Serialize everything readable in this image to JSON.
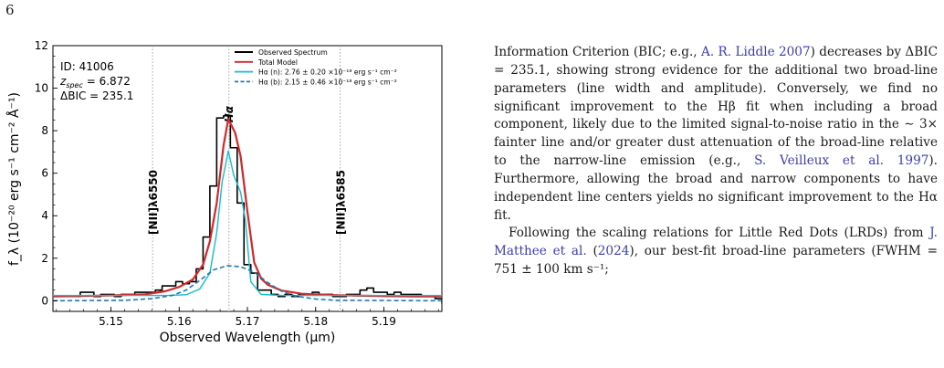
{
  "page": {
    "number": "6"
  },
  "figure": {
    "info_box": {
      "id_line": "ID: 41006",
      "z_label": "z",
      "z_sub": "spec",
      "z_value": " = 6.872",
      "bic_line": "ΔBIC = 235.1"
    },
    "line_labels": [
      {
        "text": "[NII]λ6550",
        "wavelength": 5.1561
      },
      {
        "text": "Hα",
        "wavelength": 5.1673
      },
      {
        "text": "[NII]λ6585",
        "wavelength": 5.1836
      }
    ],
    "legend": [
      {
        "label": "Observed Spectrum",
        "color": "#000000",
        "style": "solid"
      },
      {
        "label": "Total Model",
        "color": "#d62728",
        "style": "solid"
      },
      {
        "label": "Hα (n): 2.76 ± 0.20 ×10⁻¹⁸ erg s⁻¹ cm⁻²",
        "color": "#17becf",
        "style": "solid"
      },
      {
        "label": "Hα (b): 2.15 ± 0.46 ×10⁻¹⁸ erg s⁻¹ cm⁻²",
        "color": "#1f77b4",
        "style": "dashed"
      }
    ]
  },
  "chart_data": {
    "type": "line",
    "xlabel": "Observed Wavelength (μm)",
    "ylabel": "f_λ (10⁻²⁰ erg s⁻¹ cm⁻² Å⁻¹)",
    "xlim": [
      5.1415,
      5.1985
    ],
    "ylim": [
      -0.5,
      12
    ],
    "xticks": [
      "5.15",
      "5.16",
      "5.17",
      "5.18",
      "5.19"
    ],
    "yticks": [
      "0",
      "2",
      "4",
      "6",
      "8",
      "10",
      "12"
    ],
    "grid": false,
    "legend_position": "top-right",
    "series": [
      {
        "name": "Observed Spectrum",
        "kind": "step",
        "x": [
          5.1415,
          5.1425,
          5.1435,
          5.1445,
          5.1455,
          5.1465,
          5.1475,
          5.1485,
          5.1495,
          5.1505,
          5.1515,
          5.1525,
          5.1535,
          5.1545,
          5.1555,
          5.1565,
          5.1575,
          5.1585,
          5.1595,
          5.1605,
          5.1615,
          5.1625,
          5.1635,
          5.1645,
          5.1655,
          5.1665,
          5.1675,
          5.1685,
          5.1695,
          5.1705,
          5.1715,
          5.1725,
          5.1735,
          5.1745,
          5.1755,
          5.1765,
          5.1775,
          5.1785,
          5.1795,
          5.1805,
          5.1815,
          5.1825,
          5.1835,
          5.1845,
          5.1855,
          5.1865,
          5.1875,
          5.1885,
          5.1895,
          5.1905,
          5.1915,
          5.1925,
          5.1935,
          5.1945,
          5.1955,
          5.1965,
          5.1975,
          5.1985
        ],
        "values": [
          0.2,
          0.2,
          0.2,
          0.2,
          0.4,
          0.4,
          0.2,
          0.3,
          0.3,
          0.2,
          0.3,
          0.3,
          0.4,
          0.4,
          0.4,
          0.5,
          0.7,
          0.7,
          0.9,
          0.8,
          0.9,
          1.5,
          3.0,
          5.4,
          8.6,
          8.7,
          7.2,
          4.6,
          1.7,
          1.3,
          0.5,
          0.5,
          0.3,
          0.2,
          0.3,
          0.2,
          0.3,
          0.3,
          0.4,
          0.3,
          0.3,
          0.2,
          0.2,
          0.3,
          0.3,
          0.5,
          0.6,
          0.4,
          0.4,
          0.3,
          0.4,
          0.3,
          0.3,
          0.3,
          0.2,
          0.2,
          0.1,
          -0.1
        ]
      },
      {
        "name": "Total Model",
        "x": [
          5.1415,
          5.145,
          5.15,
          5.155,
          5.158,
          5.16,
          5.162,
          5.1635,
          5.1645,
          5.1655,
          5.1665,
          5.1672,
          5.1682,
          5.169,
          5.17,
          5.171,
          5.172,
          5.173,
          5.175,
          5.178,
          5.182,
          5.186,
          5.19,
          5.195,
          5.1985
        ],
        "values": [
          0.2,
          0.22,
          0.25,
          0.3,
          0.45,
          0.65,
          1.0,
          1.7,
          2.8,
          4.6,
          7.3,
          8.55,
          7.9,
          6.8,
          4.2,
          1.8,
          1.05,
          0.75,
          0.48,
          0.33,
          0.27,
          0.24,
          0.22,
          0.2,
          0.2
        ]
      },
      {
        "name": "Hα (n)",
        "x": [
          5.1415,
          5.158,
          5.161,
          5.163,
          5.1645,
          5.1655,
          5.1663,
          5.1672,
          5.168,
          5.169,
          5.1697,
          5.1705,
          5.172,
          5.175,
          5.1985
        ],
        "values": [
          0.25,
          0.25,
          0.28,
          0.55,
          1.3,
          3.2,
          5.6,
          7.05,
          5.9,
          5.1,
          3.8,
          0.9,
          0.3,
          0.25,
          0.25
        ]
      },
      {
        "name": "Hα (b)",
        "x": [
          5.1415,
          5.152,
          5.156,
          5.159,
          5.161,
          5.163,
          5.165,
          5.167,
          5.169,
          5.171,
          5.173,
          5.175,
          5.177,
          5.18,
          5.183,
          5.1985
        ],
        "values": [
          0.0,
          0.02,
          0.1,
          0.25,
          0.5,
          0.95,
          1.45,
          1.65,
          1.6,
          1.35,
          0.85,
          0.45,
          0.22,
          0.08,
          0.02,
          0.0
        ]
      }
    ]
  },
  "body_text": {
    "p1": [
      {
        "t": "Information Criterion (BIC; e.g., "
      },
      {
        "t": "A. R. Liddle 2007",
        "c": "cite"
      },
      {
        "t": ") decreases by ΔBIC = 235.1, showing strong evidence for the additional two broad-line parameters (line width and amplitude). Conversely, we find no significant improvement to the Hβ fit when including a broad component, likely due to the limited signal-to-noise ratio in the ∼ 3× fainter line and/or greater dust attenuation of the broad-line relative to the narrow-line emission (e.g., "
      },
      {
        "t": "S. Veilleux et al. 1997",
        "c": "cite"
      },
      {
        "t": "). Furthermore, allowing the broad and narrow components to have independent line centers yields no significant improvement to the Hα fit."
      }
    ],
    "p2": [
      {
        "t": "Following the scaling relations for Little Red Dots (LRDs) from "
      },
      {
        "t": "J. Matthee et al.",
        "c": "cite"
      },
      {
        "t": " ("
      },
      {
        "t": "2024",
        "c": "cite"
      },
      {
        "t": "), our best-fit broad-line parameters (FWHM = 751 ± 100 km s⁻¹;"
      }
    ]
  }
}
